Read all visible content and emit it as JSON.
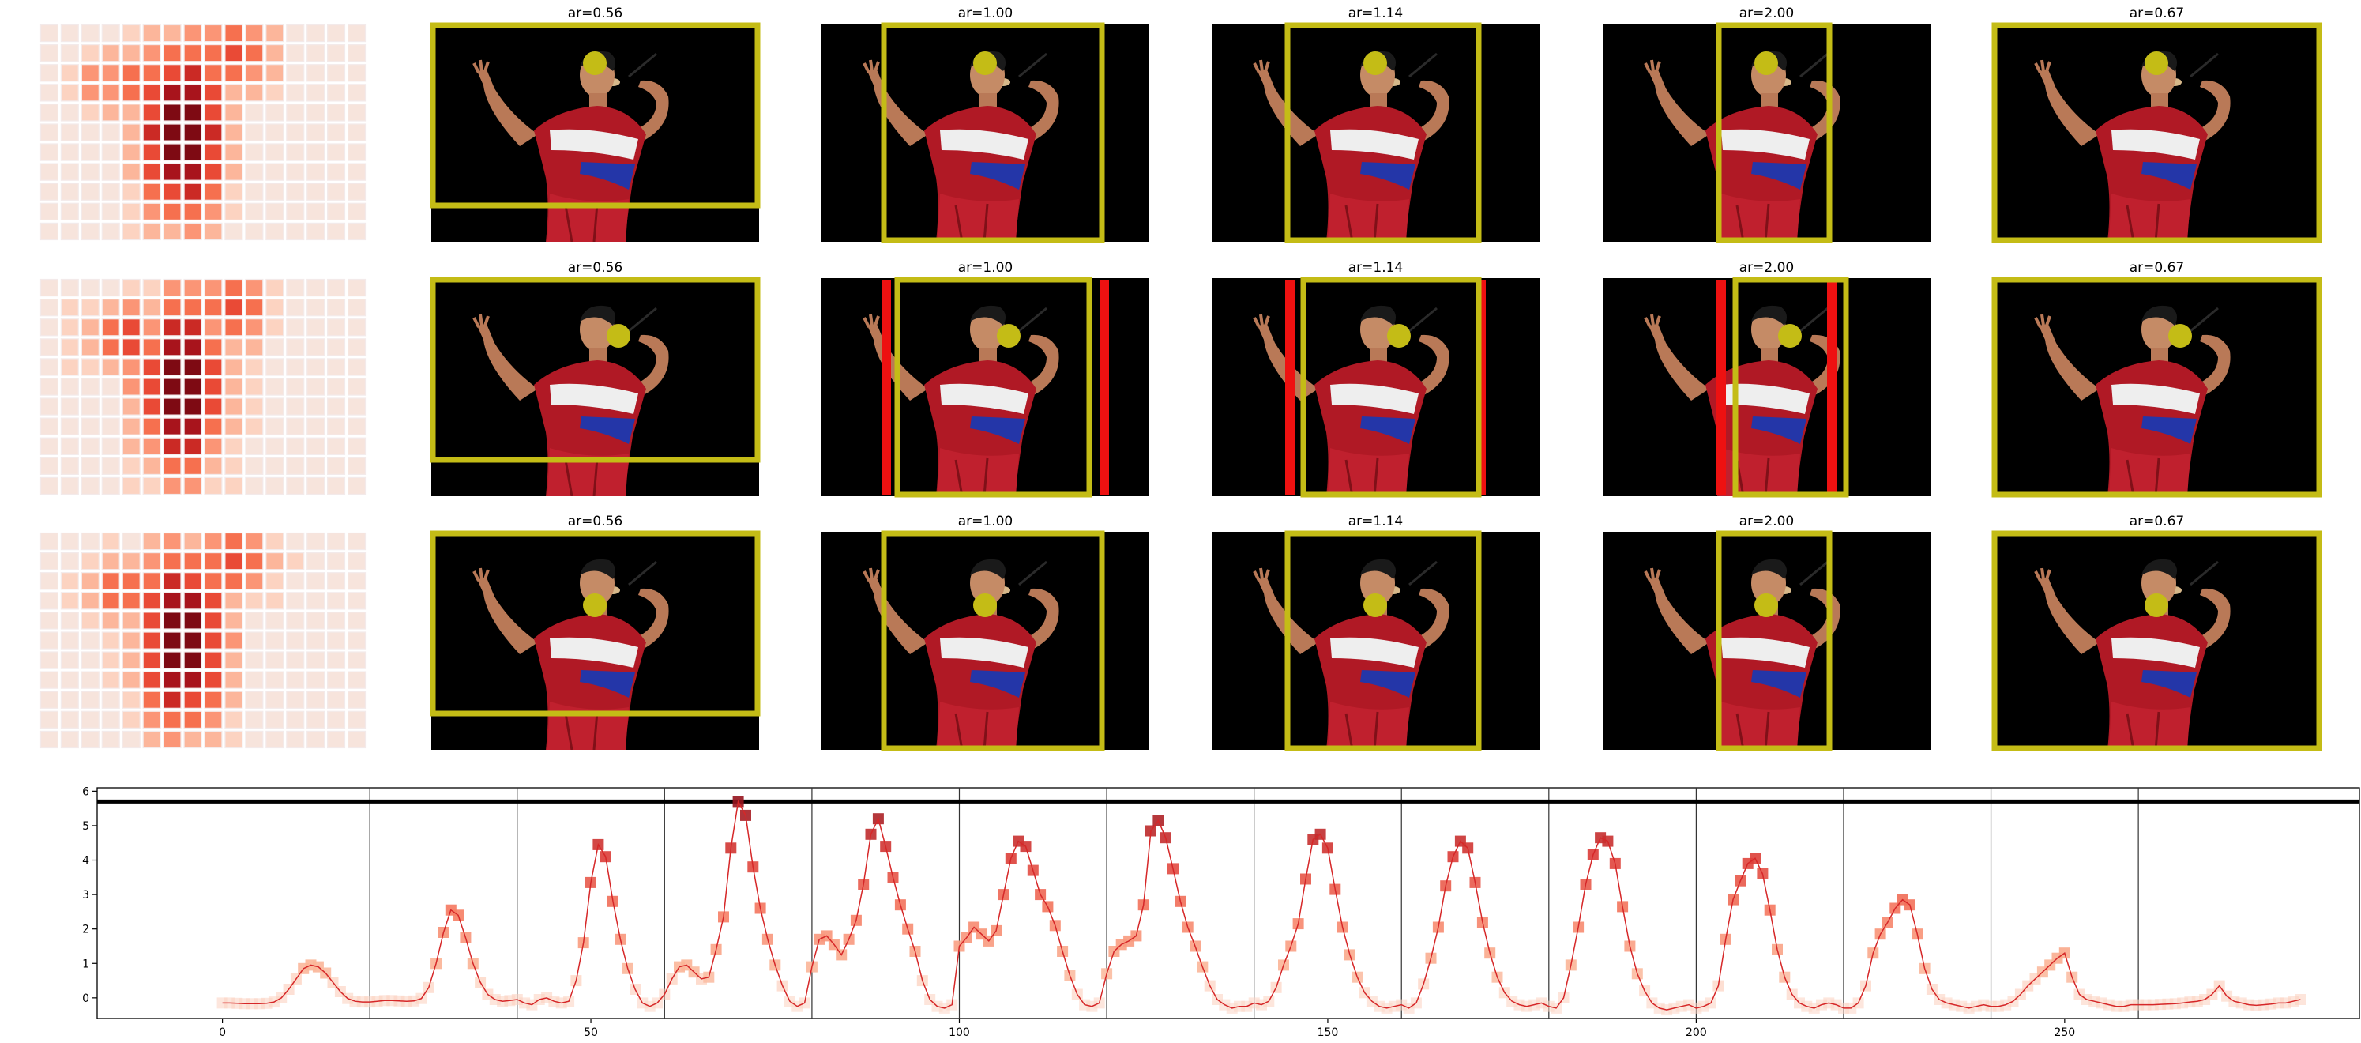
{
  "panels": {
    "titles": [
      "ar=0.56",
      "ar=1.00",
      "ar=1.14",
      "ar=2.00",
      "ar=0.67"
    ],
    "rows": 3,
    "colors": {
      "crop_box": "#c4bc16",
      "marker": "#c4bc16",
      "red_bar": "#ee1111",
      "photo_bg": "#000000"
    },
    "photo_subject": "badminton player in red jersey smashing"
  },
  "heatmap": {
    "grid_cols": 16,
    "grid_rows": 11,
    "colormap": "Reds"
  },
  "chart_data": {
    "type": "line",
    "title": "",
    "xlabel": "",
    "ylabel": "",
    "xlim": [
      -17,
      290
    ],
    "ylim": [
      -0.6,
      6.1
    ],
    "xticks": [
      0,
      50,
      100,
      150,
      200,
      250
    ],
    "yticks": [
      0,
      1,
      2,
      3,
      4,
      5,
      6
    ],
    "vlines": [
      20,
      40,
      60,
      80,
      100,
      120,
      140,
      160,
      180,
      200,
      220,
      240,
      260
    ],
    "hline": 5.7,
    "grid": false,
    "x_start": 0,
    "values": [
      -0.15,
      -0.15,
      -0.16,
      -0.17,
      -0.17,
      -0.17,
      -0.16,
      -0.12,
      0.0,
      0.25,
      0.55,
      0.85,
      0.95,
      0.9,
      0.72,
      0.45,
      0.18,
      -0.02,
      -0.1,
      -0.12,
      -0.12,
      -0.1,
      -0.08,
      -0.08,
      -0.09,
      -0.1,
      -0.09,
      -0.02,
      0.3,
      1.0,
      1.9,
      2.55,
      2.4,
      1.75,
      1.0,
      0.45,
      0.1,
      -0.05,
      -0.1,
      -0.08,
      -0.05,
      -0.15,
      -0.2,
      -0.05,
      0.0,
      -0.1,
      -0.15,
      -0.1,
      0.5,
      1.6,
      3.35,
      4.45,
      4.1,
      2.8,
      1.7,
      0.85,
      0.25,
      -0.15,
      -0.25,
      -0.15,
      0.1,
      0.55,
      0.9,
      0.95,
      0.75,
      0.55,
      0.6,
      1.4,
      2.35,
      4.35,
      5.7,
      5.3,
      3.8,
      2.6,
      1.7,
      0.95,
      0.35,
      -0.1,
      -0.25,
      -0.15,
      0.9,
      1.7,
      1.8,
      1.55,
      1.25,
      1.7,
      2.25,
      3.3,
      4.75,
      5.2,
      4.4,
      3.5,
      2.7,
      2.0,
      1.35,
      0.5,
      -0.05,
      -0.25,
      -0.3,
      -0.2,
      1.5,
      1.75,
      2.05,
      1.85,
      1.65,
      1.95,
      3.0,
      4.05,
      4.55,
      4.4,
      3.7,
      3.0,
      2.65,
      2.1,
      1.35,
      0.65,
      0.1,
      -0.2,
      -0.25,
      -0.15,
      0.7,
      1.35,
      1.55,
      1.65,
      1.8,
      2.7,
      4.85,
      5.15,
      4.65,
      3.75,
      2.8,
      2.05,
      1.5,
      0.9,
      0.35,
      -0.05,
      -0.2,
      -0.3,
      -0.25,
      -0.25,
      -0.15,
      -0.2,
      -0.1,
      0.3,
      0.95,
      1.5,
      2.15,
      3.45,
      4.6,
      4.75,
      4.35,
      3.15,
      2.05,
      1.25,
      0.6,
      0.15,
      -0.1,
      -0.25,
      -0.3,
      -0.25,
      -0.2,
      -0.3,
      -0.15,
      0.4,
      1.15,
      2.05,
      3.25,
      4.1,
      4.55,
      4.35,
      3.35,
      2.2,
      1.3,
      0.6,
      0.15,
      -0.1,
      -0.2,
      -0.25,
      -0.2,
      -0.15,
      -0.25,
      -0.3,
      0.0,
      0.95,
      2.05,
      3.3,
      4.15,
      4.65,
      4.55,
      3.9,
      2.65,
      1.5,
      0.7,
      0.2,
      -0.15,
      -0.3,
      -0.35,
      -0.3,
      -0.25,
      -0.2,
      -0.3,
      -0.25,
      -0.15,
      0.35,
      1.7,
      2.85,
      3.4,
      3.9,
      4.05,
      3.6,
      2.55,
      1.4,
      0.6,
      0.1,
      -0.15,
      -0.25,
      -0.3,
      -0.2,
      -0.15,
      -0.2,
      -0.3,
      -0.3,
      -0.15,
      0.35,
      1.3,
      1.85,
      2.2,
      2.6,
      2.85,
      2.7,
      1.85,
      0.85,
      0.25,
      -0.05,
      -0.15,
      -0.2,
      -0.25,
      -0.3,
      -0.25,
      -0.2,
      -0.25,
      -0.25,
      -0.2,
      -0.1,
      0.1,
      0.35,
      0.55,
      0.75,
      0.95,
      1.15,
      1.3,
      0.6,
      0.1,
      -0.05,
      -0.1,
      -0.15,
      -0.2,
      -0.25,
      -0.25,
      -0.2,
      -0.2,
      -0.2,
      -0.2,
      -0.19,
      -0.18,
      -0.17,
      -0.15,
      -0.12,
      -0.1,
      -0.05,
      0.1,
      0.35,
      0.05,
      -0.1,
      -0.15,
      -0.2,
      -0.22,
      -0.2,
      -0.18,
      -0.15,
      -0.15,
      -0.1,
      -0.05
    ]
  }
}
